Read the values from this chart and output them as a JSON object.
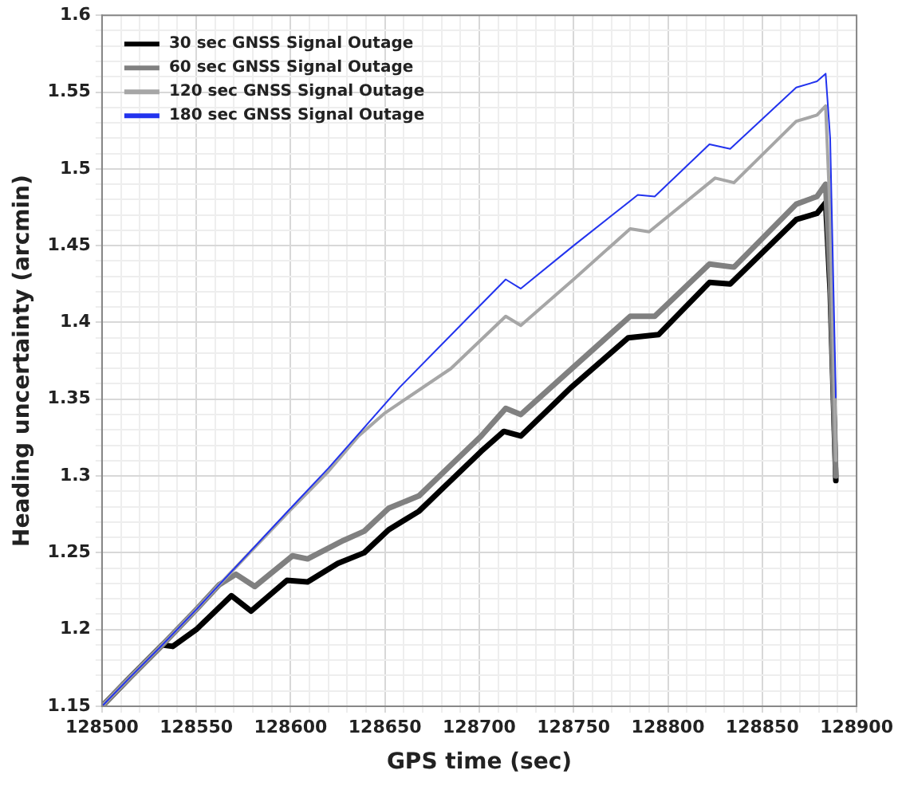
{
  "chart_data": {
    "type": "line",
    "xlabel": "GPS time (sec)",
    "ylabel": "Heading uncertainty (arcmin)",
    "xlim": [
      128500,
      128900
    ],
    "ylim": [
      1.15,
      1.6
    ],
    "xticks": [
      128500,
      {
        "value": 128510,
        "label": null
      },
      {
        "value": 128520,
        "label": null
      },
      {
        "value": 128530,
        "label": null
      },
      {
        "value": 128540,
        "label": null
      },
      128550,
      {
        "value": 128560,
        "label": null
      },
      {
        "value": 128570,
        "label": null
      },
      {
        "value": 128580,
        "label": null
      },
      {
        "value": 128590,
        "label": null
      },
      128600,
      {
        "value": 128610,
        "label": null
      },
      {
        "value": 128620,
        "label": null
      },
      {
        "value": 128630,
        "label": null
      },
      {
        "value": 128640,
        "label": null
      },
      128650,
      {
        "value": 128660,
        "label": null
      },
      {
        "value": 128670,
        "label": null
      },
      {
        "value": 128680,
        "label": null
      },
      {
        "value": 128690,
        "label": null
      },
      128700,
      {
        "value": 128710,
        "label": null
      },
      {
        "value": 128720,
        "label": null
      },
      {
        "value": 128730,
        "label": null
      },
      {
        "value": 128740,
        "label": null
      },
      128750,
      {
        "value": 128760,
        "label": null
      },
      {
        "value": 128770,
        "label": null
      },
      {
        "value": 128780,
        "label": null
      },
      {
        "value": 128790,
        "label": null
      },
      128800,
      {
        "value": 128810,
        "label": null
      },
      {
        "value": 128820,
        "label": null
      },
      {
        "value": 128830,
        "label": null
      },
      {
        "value": 128840,
        "label": null
      },
      128850,
      {
        "value": 128860,
        "label": null
      },
      {
        "value": 128870,
        "label": null
      },
      {
        "value": 128880,
        "label": null
      },
      {
        "value": 128890,
        "label": null
      },
      128900
    ],
    "yticks": [
      1.15,
      {
        "value": 1.16,
        "label": null
      },
      {
        "value": 1.17,
        "label": null
      },
      {
        "value": 1.18,
        "label": null
      },
      {
        "value": 1.19,
        "label": null
      },
      1.2,
      {
        "value": 1.21,
        "label": null
      },
      {
        "value": 1.22,
        "label": null
      },
      {
        "value": 1.23,
        "label": null
      },
      {
        "value": 1.24,
        "label": null
      },
      1.25,
      {
        "value": 1.26,
        "label": null
      },
      {
        "value": 1.27,
        "label": null
      },
      {
        "value": 1.28,
        "label": null
      },
      {
        "value": 1.29,
        "label": null
      },
      1.3,
      {
        "value": 1.31,
        "label": null
      },
      {
        "value": 1.32,
        "label": null
      },
      {
        "value": 1.33,
        "label": null
      },
      {
        "value": 1.34,
        "label": null
      },
      1.35,
      {
        "value": 1.36,
        "label": null
      },
      {
        "value": 1.37,
        "label": null
      },
      {
        "value": 1.38,
        "label": null
      },
      {
        "value": 1.39,
        "label": null
      },
      1.4,
      {
        "value": 1.41,
        "label": null
      },
      {
        "value": 1.42,
        "label": null
      },
      {
        "value": 1.43,
        "label": null
      },
      {
        "value": 1.44,
        "label": null
      },
      1.45,
      {
        "value": 1.46,
        "label": null
      },
      {
        "value": 1.47,
        "label": null
      },
      {
        "value": 1.48,
        "label": null
      },
      {
        "value": 1.49,
        "label": null
      },
      1.5,
      {
        "value": 1.51,
        "label": null
      },
      {
        "value": 1.52,
        "label": null
      },
      {
        "value": 1.53,
        "label": null
      },
      {
        "value": 1.54,
        "label": null
      },
      1.55,
      {
        "value": 1.56,
        "label": null
      },
      {
        "value": 1.57,
        "label": null
      },
      {
        "value": 1.58,
        "label": null
      },
      {
        "value": 1.59,
        "label": null
      },
      1.6
    ],
    "grid": true,
    "legend": "top left",
    "marker": "none",
    "line_style": "solid",
    "series": [
      {
        "name": "30 sec GNSS Signal Outage",
        "color": "#000000",
        "x": [
          128500,
          128515,
          128532,
          128537.5,
          128550,
          128568.6,
          128579,
          128598,
          128609,
          128625,
          128639,
          128652,
          128668,
          128679,
          128701,
          128713,
          128722,
          128749,
          128779,
          128795,
          128822,
          128833,
          128868,
          128879,
          128883.6,
          128886,
          128889
        ],
        "values": [
          1.15,
          1.169,
          1.19,
          1.189,
          1.2,
          1.222,
          1.212,
          1.232,
          1.231,
          1.243,
          1.25,
          1.265,
          1.277,
          1.29,
          1.316,
          1.329,
          1.326,
          1.358,
          1.39,
          1.392,
          1.426,
          1.425,
          1.467,
          1.471,
          1.478,
          1.42,
          1.297
        ]
      },
      {
        "name": "60 sec GNSS Signal Outage",
        "color": "#808080",
        "x": [
          128500,
          128515,
          128532,
          128550,
          128562,
          128571,
          128581,
          128601,
          128609,
          128628,
          128639,
          128652,
          128668,
          128679,
          128701,
          128714,
          128722,
          128750,
          128780,
          128793,
          128822,
          128835,
          128868,
          128879,
          128883.6,
          128886,
          128889
        ],
        "values": [
          1.15,
          1.169,
          1.19,
          1.213,
          1.229,
          1.236,
          1.228,
          1.248,
          1.246,
          1.258,
          1.264,
          1.279,
          1.287,
          1.3,
          1.326,
          1.344,
          1.34,
          1.371,
          1.404,
          1.404,
          1.438,
          1.436,
          1.477,
          1.482,
          1.49,
          1.43,
          1.3
        ]
      },
      {
        "name": "120 sec GNSS Signal Outage",
        "color": "#a6a6a6",
        "x": [
          128500,
          128515,
          128532,
          128550,
          128562,
          128600,
          128620,
          128636,
          128650,
          128685,
          128714,
          128722,
          128750,
          128780,
          128790,
          128825,
          128835,
          128868,
          128879,
          128883.6,
          128886,
          128889
        ],
        "values": [
          1.15,
          1.169,
          1.19,
          1.213,
          1.229,
          1.278,
          1.303,
          1.326,
          1.341,
          1.37,
          1.404,
          1.398,
          1.428,
          1.461,
          1.459,
          1.494,
          1.491,
          1.531,
          1.535,
          1.541,
          1.47,
          1.31
        ]
      },
      {
        "name": "180 sec GNSS Signal Outage",
        "color": "#2233ee",
        "x": [
          128500,
          128515,
          128532,
          128550,
          128562,
          128600,
          128620,
          128658,
          128690,
          128714,
          128722,
          128750,
          128784,
          128793,
          128822,
          128833,
          128868,
          128879,
          128883.6,
          128886,
          128889
        ],
        "values": [
          1.15,
          1.169,
          1.19,
          1.213,
          1.229,
          1.279,
          1.305,
          1.358,
          1.398,
          1.428,
          1.422,
          1.45,
          1.483,
          1.482,
          1.516,
          1.513,
          1.553,
          1.557,
          1.562,
          1.52,
          1.351
        ]
      }
    ]
  }
}
